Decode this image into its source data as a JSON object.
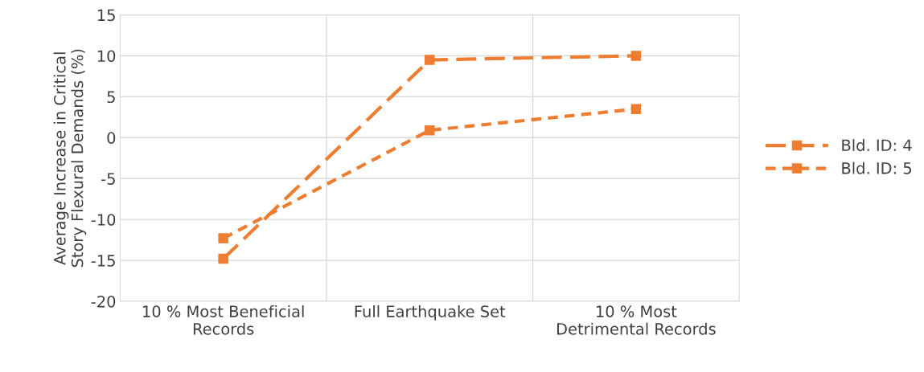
{
  "chart_data": {
    "type": "line",
    "ylabel": "Average Increase in Critical\nStory Flexural Demands (%)",
    "categories": [
      "10 % Most Beneficial\nRecords",
      "Full Earthquake Set",
      "10 % Most\nDetrimental Records"
    ],
    "series": [
      {
        "name": "Bld. ID: 4",
        "color": "#ed7d31",
        "values": [
          -14.8,
          9.5,
          10.0
        ],
        "line_style": "dashed"
      },
      {
        "name": "Bld. ID: 5",
        "color": "#ed7d31",
        "values": [
          -12.3,
          0.9,
          3.5
        ],
        "line_style": "dashed"
      }
    ],
    "ylim": [
      -20,
      15
    ],
    "yticks": [
      -20,
      -15,
      -10,
      -5,
      0,
      5,
      10,
      15
    ],
    "grid": true,
    "legend": "right",
    "marker": "square"
  }
}
